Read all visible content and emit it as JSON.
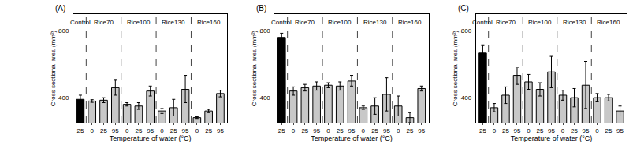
{
  "chart_data": [
    {
      "type": "bar",
      "title": "(A)",
      "x_label": "Temperature of water (°C)",
      "y_label": "Cross sectional area (mm²)",
      "ylim": [
        250,
        900
      ],
      "yticks": [
        400,
        800
      ],
      "grid": false,
      "groups": [
        {
          "label": "Control",
          "color": "#000000",
          "categories": [
            "25"
          ],
          "values": [
            390
          ],
          "errors": [
            25
          ]
        },
        {
          "label": "Rice70",
          "color": "#c8c8c8",
          "categories": [
            "0",
            "25",
            "95"
          ],
          "values": [
            380,
            385,
            460
          ],
          "errors": [
            8,
            15,
            45
          ]
        },
        {
          "label": "Rice100",
          "color": "#c8c8c8",
          "categories": [
            "0",
            "25",
            "95"
          ],
          "values": [
            360,
            350,
            440
          ],
          "errors": [
            10,
            20,
            30
          ]
        },
        {
          "label": "Rice130",
          "color": "#c8c8c8",
          "categories": [
            "0",
            "25",
            "95"
          ],
          "values": [
            320,
            340,
            450
          ],
          "errors": [
            15,
            50,
            80
          ]
        },
        {
          "label": "Rice160",
          "color": "#c8c8c8",
          "categories": [
            "0",
            "25",
            "95"
          ],
          "values": [
            280,
            320,
            425
          ],
          "errors": [
            5,
            10,
            20
          ]
        }
      ]
    },
    {
      "type": "bar",
      "title": "(B)",
      "x_label": "Temperature of water (°C)",
      "y_label": "Cross sectional area (mm²)",
      "ylim": [
        250,
        900
      ],
      "yticks": [
        400,
        800
      ],
      "grid": false,
      "groups": [
        {
          "label": "Control",
          "color": "#000000",
          "categories": [
            "25"
          ],
          "values": [
            760
          ],
          "errors": [
            25
          ]
        },
        {
          "label": "Rice70",
          "color": "#c8c8c8",
          "categories": [
            "0",
            "25",
            "95"
          ],
          "values": [
            440,
            460,
            470
          ],
          "errors": [
            25,
            20,
            25
          ]
        },
        {
          "label": "Rice100",
          "color": "#c8c8c8",
          "categories": [
            "0",
            "25",
            "95"
          ],
          "values": [
            475,
            470,
            500
          ],
          "errors": [
            15,
            25,
            30
          ]
        },
        {
          "label": "Rice130",
          "color": "#c8c8c8",
          "categories": [
            "0",
            "25",
            "95"
          ],
          "values": [
            340,
            350,
            420
          ],
          "errors": [
            10,
            50,
            100
          ]
        },
        {
          "label": "Rice160",
          "color": "#c8c8c8",
          "categories": [
            "0",
            "25",
            "95"
          ],
          "values": [
            350,
            280,
            455
          ],
          "errors": [
            60,
            30,
            15
          ]
        }
      ]
    },
    {
      "type": "bar",
      "title": "(C)",
      "x_label": "Temperature of water (°C)",
      "y_label": "Cross sectional area (mm²)",
      "ylim": [
        250,
        900
      ],
      "yticks": [
        400,
        800
      ],
      "grid": false,
      "groups": [
        {
          "label": "Control",
          "color": "#000000",
          "categories": [
            "25"
          ],
          "values": [
            670
          ],
          "errors": [
            45
          ]
        },
        {
          "label": "Rice70",
          "color": "#c8c8c8",
          "categories": [
            "0",
            "25",
            "95"
          ],
          "values": [
            340,
            415,
            530
          ],
          "errors": [
            25,
            50,
            50
          ]
        },
        {
          "label": "Rice100",
          "color": "#c8c8c8",
          "categories": [
            "0",
            "25",
            "95"
          ],
          "values": [
            495,
            450,
            555
          ],
          "errors": [
            45,
            40,
            95
          ]
        },
        {
          "label": "Rice130",
          "color": "#c8c8c8",
          "categories": [
            "0",
            "25",
            "95"
          ],
          "values": [
            415,
            400,
            475
          ],
          "errors": [
            30,
            55,
            140
          ]
        },
        {
          "label": "Rice160",
          "color": "#c8c8c8",
          "categories": [
            "0",
            "25",
            "95"
          ],
          "values": [
            400,
            400,
            320
          ],
          "errors": [
            25,
            20,
            30
          ]
        }
      ]
    }
  ]
}
